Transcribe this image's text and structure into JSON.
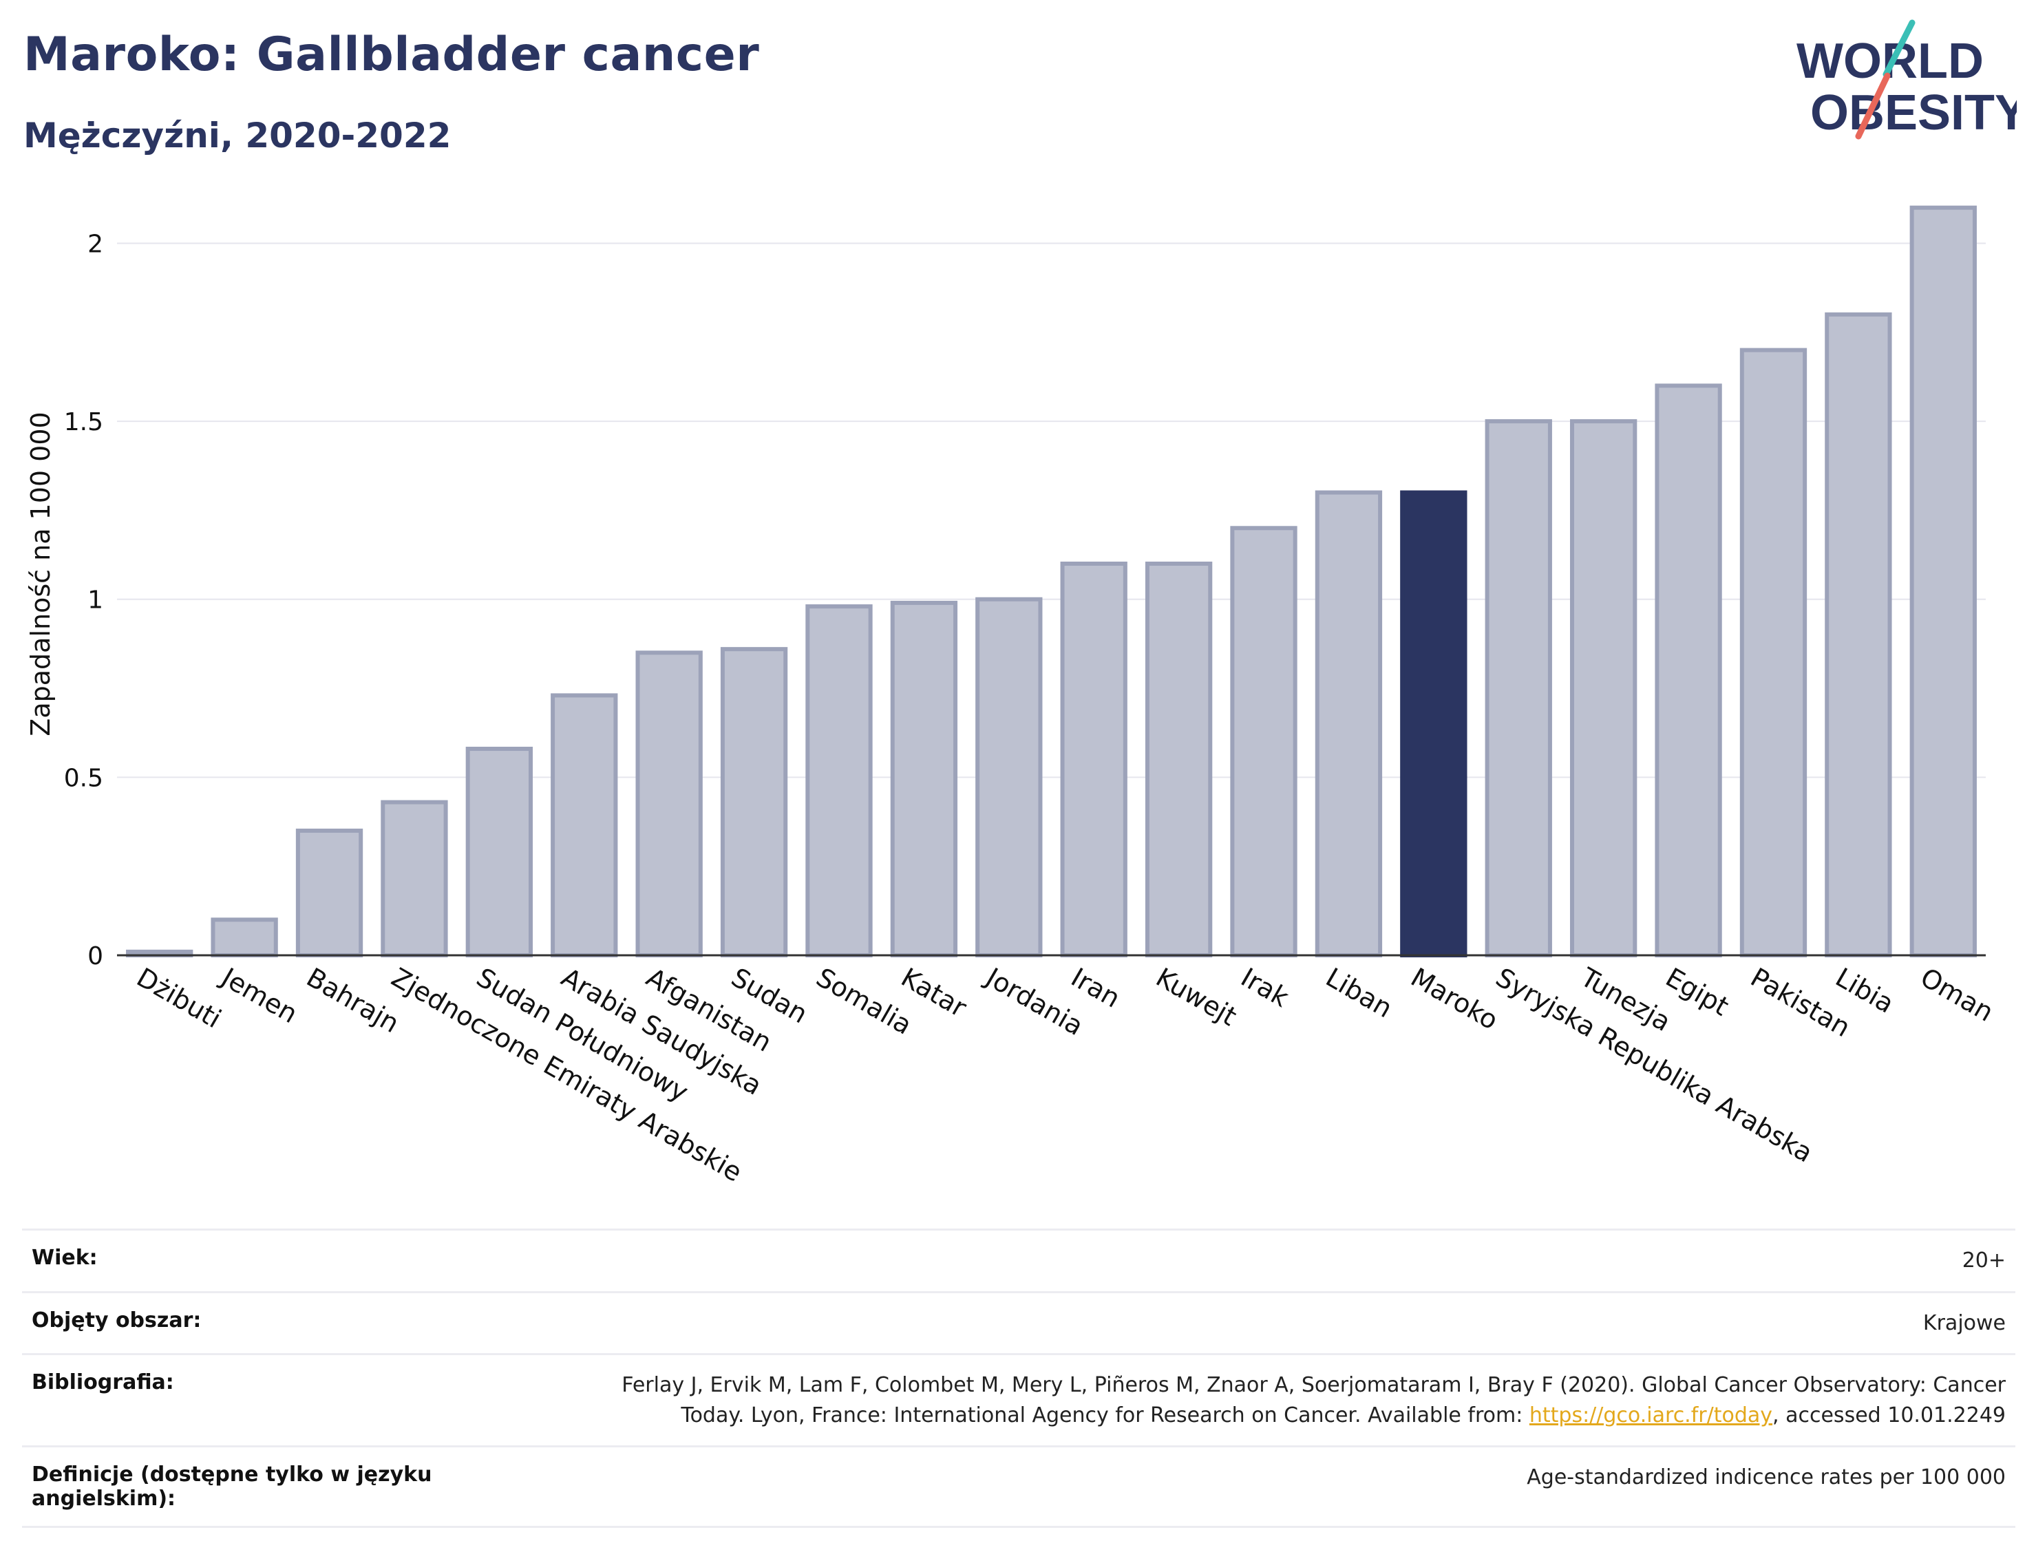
{
  "header": {
    "title": "Maroko: Gallbladder cancer",
    "subtitle": "Mężczyźni, 2020-2022"
  },
  "logo": {
    "line1": "WORLD",
    "line2": "OBESITY",
    "accent_teal": "#3bbfb6",
    "accent_red": "#e8675a"
  },
  "colors": {
    "bar": "#bdc1d0",
    "bar_stroke": "#9ca2b9",
    "highlight": "#2b3561",
    "grid": "#e6e6ee"
  },
  "chart_data": {
    "type": "bar",
    "ylabel": "Zapadalność na 100 000",
    "xlabel": "",
    "ylim": [
      0,
      2.2
    ],
    "yticks": [
      0,
      0.5,
      1,
      1.5,
      2
    ],
    "ytick_labels": [
      "0",
      "0.5",
      "1",
      "1.5",
      "2"
    ],
    "grid": true,
    "highlight": "Maroko",
    "categories": [
      "Dżibuti",
      "Jemen",
      "Bahrajn",
      "Zjednoczone Emiraty Arabskie",
      "Sudan Południowy",
      "Arabia Saudyjska",
      "Afganistan",
      "Sudan",
      "Somalia",
      "Katar",
      "Jordania",
      "Iran",
      "Kuwejt",
      "Irak",
      "Liban",
      "Maroko",
      "Syryjska Republika Arabska",
      "Tunezja",
      "Egipt",
      "Pakistan",
      "Libia",
      "Oman"
    ],
    "values": [
      0.01,
      0.1,
      0.35,
      0.43,
      0.58,
      0.73,
      0.85,
      0.86,
      0.98,
      0.99,
      1.0,
      1.1,
      1.1,
      1.2,
      1.3,
      1.3,
      1.5,
      1.5,
      1.6,
      1.7,
      1.8,
      2.1
    ]
  },
  "meta": {
    "age_label": "Wiek:",
    "age_value": "20+",
    "area_label": "Objęty obszar:",
    "area_value": "Krajowe",
    "bib_label": "Bibliografia:",
    "bib_line1": "Ferlay J, Ervik M, Lam F, Colombet M, Mery L, Piñeros M, Znaor A, Soerjomataram I, Bray F (2020). Global Cancer Observatory: Cancer",
    "bib_line2_pre": "Today. Lyon, France: International Agency for Research on Cancer. Available from: ",
    "bib_link": "https://gco.iarc.fr/today",
    "bib_line2_post": ", accessed 10.01.2249",
    "def_label": "Definicje (dostępne tylko w języku angielskim):",
    "def_value": "Age-standardized indicence rates per 100 000"
  }
}
